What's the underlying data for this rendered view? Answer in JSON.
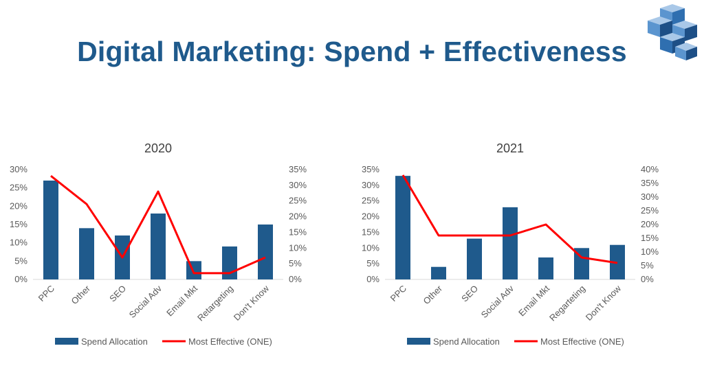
{
  "page": {
    "title": "Digital Marketing: Spend + Effectiveness"
  },
  "logo": {
    "icon": "interlocking-cubes-logo",
    "colors": [
      "#a9c8e8",
      "#5b95cf",
      "#2f6fb0",
      "#1d4f86"
    ]
  },
  "colors": {
    "bar": "#1f5a8c",
    "line": "#ff0000",
    "axis_text": "#595959",
    "title": "#1f5a8c"
  },
  "chart_data": [
    {
      "type": "bar",
      "title": "2020",
      "categories": [
        "PPC",
        "Other",
        "SEO",
        "Social Adv",
        "Email Mkt",
        "Retargeting",
        "Don't Know"
      ],
      "series": [
        {
          "name": "Spend Allocation",
          "type": "bar",
          "axis": "left",
          "values": [
            27,
            14,
            12,
            18,
            5,
            9,
            15
          ]
        },
        {
          "name": "Most Effective (ONE)",
          "type": "line",
          "axis": "right",
          "values": [
            33,
            24,
            7,
            28,
            2,
            2,
            7
          ]
        }
      ],
      "ylim": [
        0,
        30
      ],
      "y2lim": [
        0,
        35
      ],
      "yticks": [
        "0%",
        "5%",
        "10%",
        "15%",
        "20%",
        "25%",
        "30%"
      ],
      "y2ticks": [
        "0%",
        "5%",
        "10%",
        "15%",
        "20%",
        "25%",
        "30%",
        "35%"
      ],
      "legend_position": "bottom",
      "grid": false
    },
    {
      "type": "bar",
      "title": "2021",
      "categories": [
        "PPC",
        "Other",
        "SEO",
        "Social Adv",
        "Email Mkt",
        "Regarteting",
        "Don't Know"
      ],
      "series": [
        {
          "name": "Spend Allocation",
          "type": "bar",
          "axis": "left",
          "values": [
            33,
            4,
            13,
            23,
            7,
            10,
            11
          ]
        },
        {
          "name": "Most Effective (ONE)",
          "type": "line",
          "axis": "right",
          "values": [
            38,
            16,
            16,
            16,
            20,
            8,
            6
          ]
        }
      ],
      "ylim": [
        0,
        35
      ],
      "y2lim": [
        0,
        40
      ],
      "yticks": [
        "0%",
        "5%",
        "10%",
        "15%",
        "20%",
        "25%",
        "30%",
        "35%"
      ],
      "y2ticks": [
        "0%",
        "5%",
        "10%",
        "15%",
        "20%",
        "25%",
        "30%",
        "35%",
        "40%"
      ],
      "legend_position": "bottom",
      "grid": false
    }
  ]
}
